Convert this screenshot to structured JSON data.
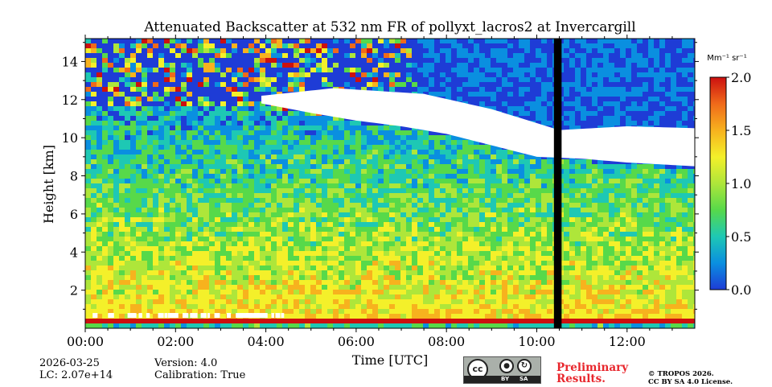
{
  "chart_data": {
    "type": "heatmap",
    "title": "Attenuated Backscatter at 532 nm FR of pollyxt_lacros2 at Invercargill",
    "xlabel": "Time [UTC]",
    "ylabel": "Height [km]",
    "xlim_hours": [
      0,
      13.5
    ],
    "ylim_km": [
      0,
      15.2
    ],
    "x_ticks": [
      0,
      2,
      4,
      6,
      8,
      10,
      12
    ],
    "x_tick_labels": [
      "00:00",
      "02:00",
      "04:00",
      "06:00",
      "08:00",
      "10:00",
      "12:00"
    ],
    "y_ticks": [
      2,
      4,
      6,
      8,
      10,
      12,
      14
    ],
    "y_tick_labels": [
      "2",
      "4",
      "6",
      "8",
      "10",
      "12",
      "14"
    ],
    "colorbar": {
      "label": "Mm⁻¹ sr⁻¹",
      "range": [
        0.0,
        2.0
      ],
      "ticks": [
        0.0,
        0.5,
        1.0,
        1.5,
        2.0
      ],
      "tick_labels": [
        "0.0",
        "0.5",
        "1.0",
        "1.5",
        "2.0"
      ],
      "colormap": [
        "#1e3cd6",
        "#0a8fe0",
        "#1ec8b4",
        "#57d94a",
        "#aee63a",
        "#f4f02a",
        "#f7b21e",
        "#f06a1a",
        "#cc1010"
      ]
    },
    "features": {
      "cloud_base_km": [
        [
          3.9,
          11.8
        ],
        [
          5.0,
          11.3
        ],
        [
          6.0,
          10.9
        ],
        [
          7.0,
          10.6
        ],
        [
          8.0,
          10.2
        ],
        [
          9.0,
          9.6
        ],
        [
          10.0,
          9.0
        ],
        [
          11.0,
          8.9
        ],
        [
          12.0,
          8.7
        ],
        [
          13.5,
          8.5
        ]
      ],
      "cloud_top_km": [
        [
          3.9,
          12.2
        ],
        [
          5.5,
          12.6
        ],
        [
          7.5,
          12.3
        ],
        [
          9.0,
          11.5
        ],
        [
          10.5,
          10.4
        ],
        [
          12.0,
          10.6
        ],
        [
          13.5,
          10.5
        ]
      ],
      "missing_data_hours": [
        10.38,
        10.55
      ],
      "boundary_layer_top_km": 0.7,
      "saturated_low_cloud_hours": [
        0.0,
        4.4
      ]
    }
  },
  "meta": {
    "date": "2026-03-25",
    "lc": "LC: 2.07e+14",
    "version": "Version: 4.0",
    "calibration": "Calibration: True",
    "prelim_line1": "Preliminary",
    "prelim_line2": "Results.",
    "copyright_line1": "© TROPOS 2026.",
    "copyright_line2": "CC BY SA 4.0 License.",
    "cc_by": "BY",
    "cc_sa": "SA",
    "cc_mark": "cc"
  }
}
